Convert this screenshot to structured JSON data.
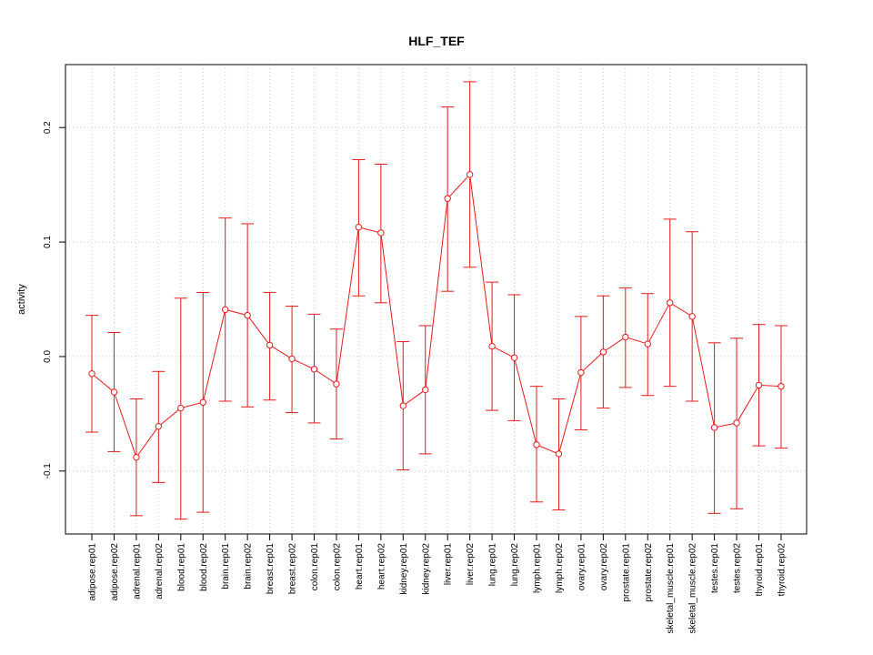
{
  "chart_data": {
    "type": "line",
    "title": "HLF_TEF",
    "xlabel": "",
    "ylabel": "activity",
    "ylim": [
      -0.155,
      0.255
    ],
    "yticks": [
      -0.1,
      0.0,
      0.1,
      0.2
    ],
    "ytick_labels": [
      "-0.1",
      "0.0",
      "0.1",
      "0.2"
    ],
    "grid": true,
    "colors": {
      "series": "#e41a1c",
      "grid": "#cccccc",
      "axis": "#000000"
    },
    "categories": [
      "adipose.rep01",
      "adipose.rep02",
      "adrenal.rep01",
      "adrenal.rep02",
      "blood.rep01",
      "blood.rep02",
      "brain.rep01",
      "brain.rep02",
      "breast.rep01",
      "breast.rep02",
      "colon.rep01",
      "colon.rep02",
      "heart.rep01",
      "heart.rep02",
      "kidney.rep01",
      "kidney.rep02",
      "liver.rep01",
      "liver.rep02",
      "lung.rep01",
      "lung.rep02",
      "lymph.rep01",
      "lymph.rep02",
      "ovary.rep01",
      "ovary.rep02",
      "prostate.rep01",
      "prostate.rep02",
      "skeletal_muscle.rep01",
      "skeletal_muscle.rep02",
      "testes.rep01",
      "testes.rep02",
      "thyroid.rep01",
      "thyroid.rep02"
    ],
    "values": [
      -0.015,
      -0.031,
      -0.088,
      -0.061,
      -0.045,
      -0.04,
      0.041,
      0.036,
      0.01,
      -0.002,
      -0.011,
      -0.024,
      0.113,
      0.108,
      -0.043,
      -0.029,
      0.138,
      0.159,
      0.009,
      -0.001,
      -0.077,
      -0.085,
      -0.014,
      0.004,
      0.017,
      0.011,
      0.047,
      0.035,
      -0.062,
      -0.058,
      -0.025,
      -0.026
    ],
    "upper": [
      0.036,
      0.021,
      -0.037,
      -0.013,
      0.051,
      0.056,
      0.121,
      0.116,
      0.056,
      0.044,
      0.037,
      0.024,
      0.172,
      0.168,
      0.013,
      0.027,
      0.218,
      0.24,
      0.065,
      0.054,
      -0.026,
      -0.037,
      0.035,
      0.053,
      0.06,
      0.055,
      0.12,
      0.109,
      0.012,
      0.016,
      0.028,
      0.027
    ],
    "lower": [
      -0.066,
      -0.083,
      -0.139,
      -0.11,
      -0.142,
      -0.136,
      -0.039,
      -0.044,
      -0.038,
      -0.049,
      -0.058,
      -0.072,
      0.053,
      0.047,
      -0.099,
      -0.085,
      0.057,
      0.078,
      -0.047,
      -0.056,
      -0.127,
      -0.134,
      -0.064,
      -0.045,
      -0.027,
      -0.034,
      -0.026,
      -0.039,
      -0.137,
      -0.133,
      -0.078,
      -0.08
    ]
  }
}
